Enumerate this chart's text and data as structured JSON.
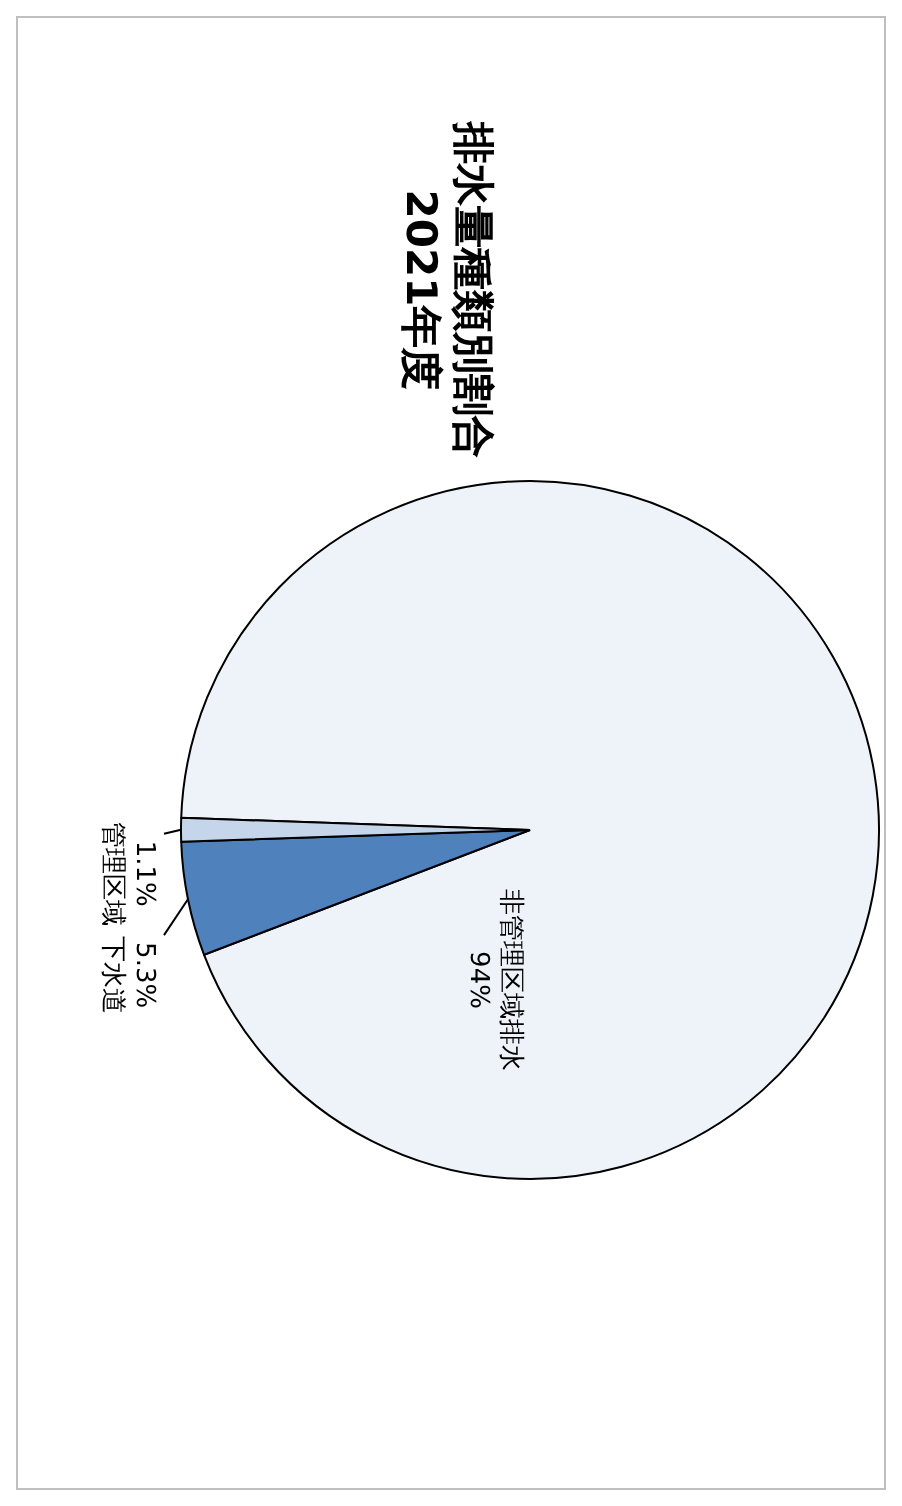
{
  "chart_data": {
    "type": "pie",
    "title": "排水量種類別割合\n2021年度",
    "categories": [
      "非管理区域排水",
      "下水道",
      "管理区域"
    ],
    "values": [
      94,
      5.3,
      1.1
    ],
    "value_labels": [
      "94%",
      "5.3%",
      "1.1%"
    ],
    "colors": [
      "#eef3fa",
      "#4f81bd",
      "#c5d5ea"
    ],
    "legend": false
  }
}
